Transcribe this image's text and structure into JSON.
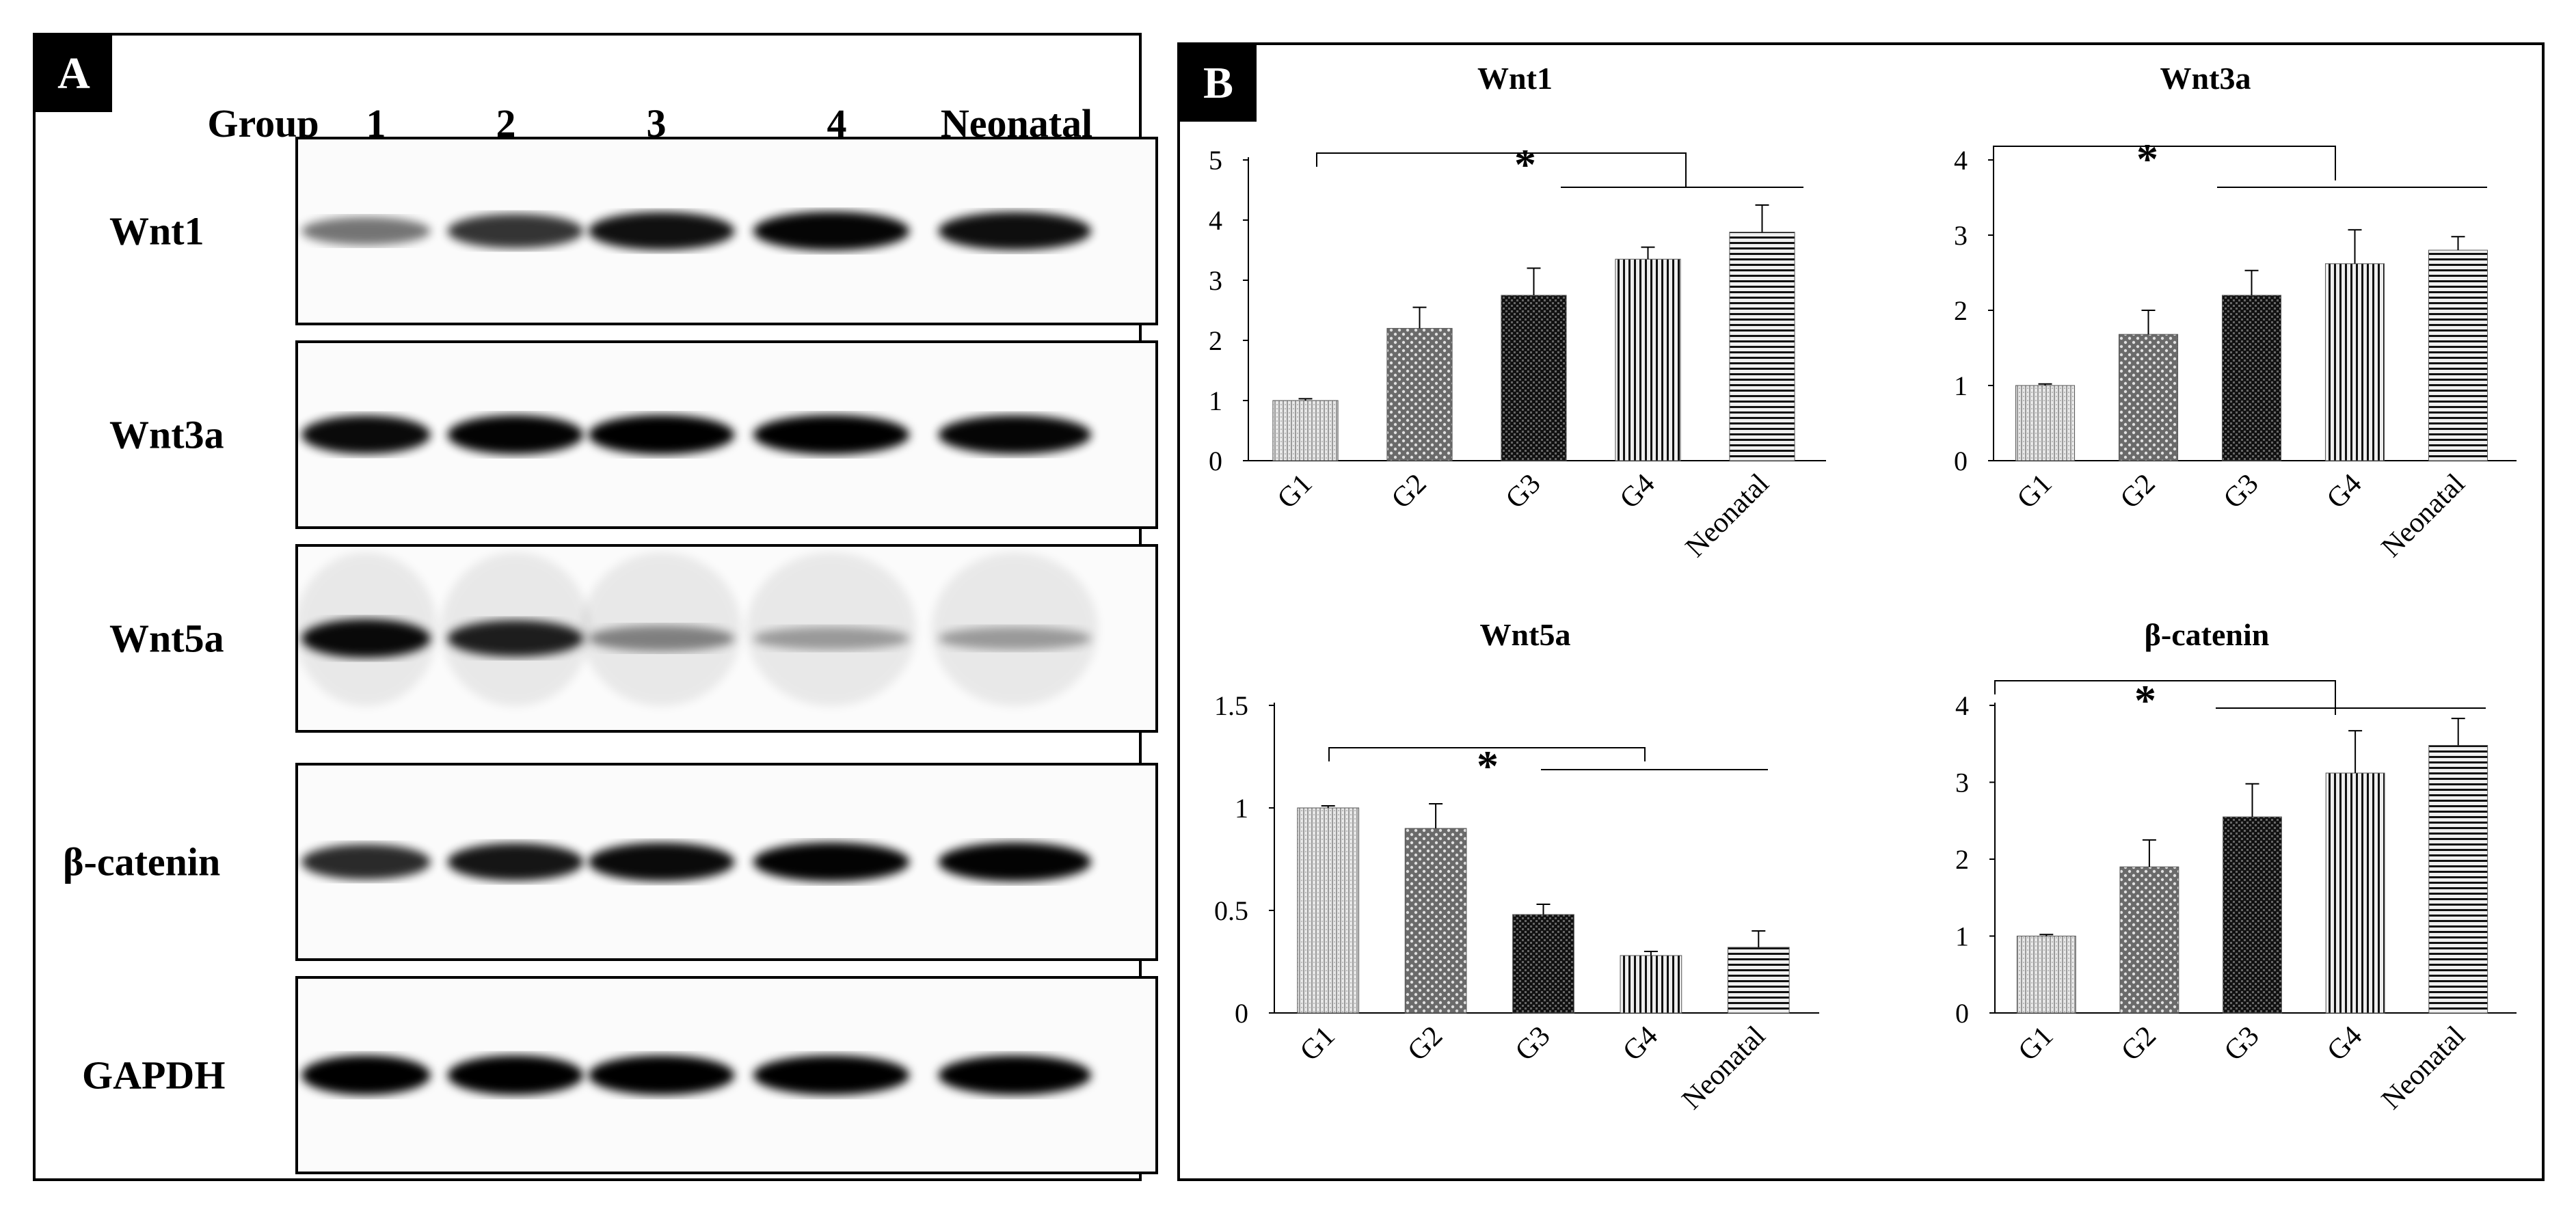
{
  "panel_a": {
    "letter": "A",
    "header": [
      "Group",
      "1",
      "2",
      "3",
      "4",
      "Neonatal"
    ],
    "blots": [
      {
        "label": "Wnt1",
        "intensity": [
          0.45,
          0.75,
          0.92,
          0.97,
          0.93
        ]
      },
      {
        "label": "Wnt3a",
        "intensity": [
          0.95,
          0.98,
          1.0,
          1.0,
          0.97
        ]
      },
      {
        "label": "Wnt5a",
        "intensity": [
          0.95,
          0.85,
          0.35,
          0.22,
          0.22
        ]
      },
      {
        "label": "β-catenin",
        "intensity": [
          0.8,
          0.9,
          0.95,
          0.98,
          0.98
        ]
      },
      {
        "label": "GAPDH",
        "intensity": [
          1.0,
          1.0,
          1.0,
          1.0,
          1.0
        ]
      }
    ]
  },
  "panel_b": {
    "letter": "B"
  },
  "chart_data": [
    {
      "type": "bar",
      "title": "Wnt1",
      "categories": [
        "G1",
        "G2",
        "G3",
        "G4",
        "Neonatal"
      ],
      "values": [
        1.0,
        2.2,
        2.75,
        3.35,
        3.8
      ],
      "errors": [
        0.03,
        0.35,
        0.45,
        0.2,
        0.45
      ],
      "ylim": [
        0,
        5
      ],
      "yticks": [
        0,
        1,
        2,
        3,
        4,
        5
      ],
      "significance": "*",
      "xlabel": "",
      "ylabel": ""
    },
    {
      "type": "bar",
      "title": "Wnt3a",
      "categories": [
        "G1",
        "G2",
        "G3",
        "G4",
        "Neonatal"
      ],
      "values": [
        1.0,
        1.68,
        2.2,
        2.62,
        2.8
      ],
      "errors": [
        0.02,
        0.32,
        0.33,
        0.45,
        0.18
      ],
      "ylim": [
        0,
        4
      ],
      "yticks": [
        0,
        1,
        2,
        3,
        4
      ],
      "significance": "*",
      "xlabel": "",
      "ylabel": ""
    },
    {
      "type": "bar",
      "title": "Wnt5a",
      "categories": [
        "G1",
        "G2",
        "G3",
        "G4",
        "Neonatal"
      ],
      "values": [
        1.0,
        0.9,
        0.48,
        0.28,
        0.32
      ],
      "errors": [
        0.01,
        0.12,
        0.05,
        0.02,
        0.08
      ],
      "ylim": [
        0,
        1.5
      ],
      "yticks": [
        0,
        0.5,
        1,
        1.5
      ],
      "significance": "*",
      "xlabel": "",
      "ylabel": ""
    },
    {
      "type": "bar",
      "title": "β-catenin",
      "categories": [
        "G1",
        "G2",
        "G3",
        "G4",
        "Neonatal"
      ],
      "values": [
        1.0,
        1.9,
        2.55,
        3.12,
        3.48
      ],
      "errors": [
        0.02,
        0.35,
        0.43,
        0.55,
        0.35
      ],
      "ylim": [
        0,
        4
      ],
      "yticks": [
        0,
        1,
        2,
        3,
        4
      ],
      "significance": "*",
      "xlabel": "",
      "ylabel": ""
    }
  ]
}
